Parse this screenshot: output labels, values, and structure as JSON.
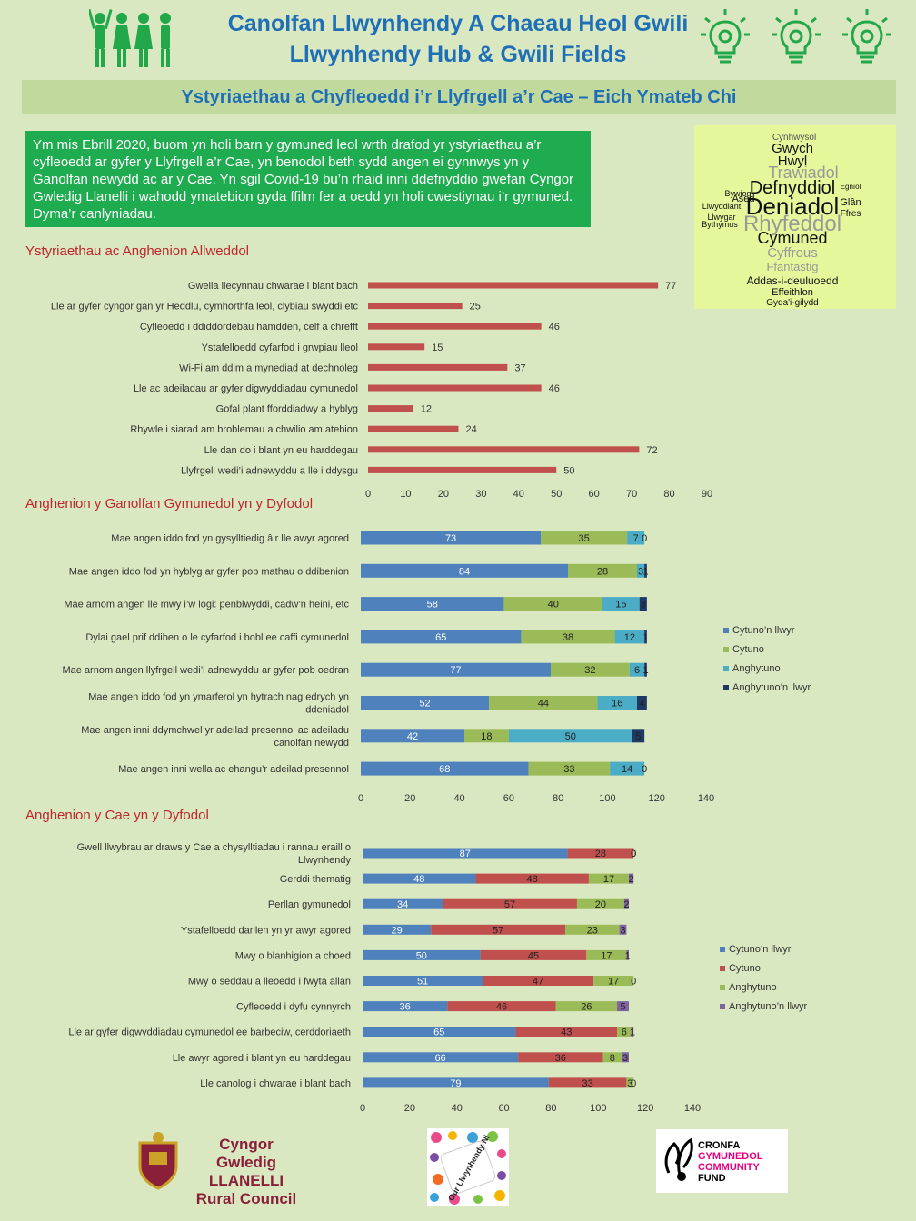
{
  "header": {
    "title_welsh": "Canolfan Llwynhendy A Chaeau Heol Gwili",
    "title_english": "Llwynhendy Hub & Gwili Fields",
    "banner": "Ystyriaethau a Chyfleoedd i’r Llyfrgell a’r Cae – Eich Ymateb Chi",
    "icons": [
      "people-icon",
      "lightbulb-gear-icon",
      "lightbulb-gear-icon",
      "lightbulb-gear-icon"
    ],
    "colors": {
      "title": "#1f6fb7",
      "people": "#22a84a",
      "bulb": "#22a84a"
    }
  },
  "intro": "Ym mis Ebrill 2020, buom yn holi barn y gymuned leol wrth drafod yr ystyriaethau a’r cyfleoedd ar gyfer y Llyfrgell a’r Cae, yn benodol beth sydd angen ei gynnwys yn y Ganolfan newydd ac ar y Cae.  Yn sgil Covid-19 bu’n rhaid inni ddefnyddio gwefan Cyngor Gwledig Llanelli i wahodd ymatebion gyda ffilm fer a oedd yn holi cwestiynau i’r gymuned.  Dyma’r canlyniadau.",
  "word_cloud": [
    "Cynhwysol",
    "Gwych",
    "Hwyl",
    "Trawiadol",
    "Defnyddiol",
    "Deniadol",
    "Rhyfeddol",
    "Cymuned",
    "Cyffrous",
    "Ffantastig",
    "Addas-i-deuluoedd",
    "Effeithlon",
    "Gyda'i-gilydd",
    "Llwyddiant",
    "Llwygar",
    "Bywiog",
    "Ased",
    "Bythymus",
    "Glân",
    "Ffres",
    "Egnïol"
  ],
  "footer": {
    "council_line1": "Cyngor Gwledig",
    "council_line2": "LLANELLI",
    "council_line3": "Rural Council",
    "middle_logo": "Our Llwynhendy Ni",
    "fund_line1": "CRONFA",
    "fund_line2": "GYMUNEDOL",
    "fund_line3": "COMMUNITY",
    "fund_line4": "FUND"
  },
  "chart_data": [
    {
      "type": "bar",
      "title": "Ystyriaethau ac Anghenion Allweddol",
      "orientation": "horizontal",
      "categories": [
        "Gwella llecynnau chwarae i blant bach",
        "Lle ar gyfer cyngor gan yr Heddlu, cymhorthfa leol, clybiau swyddi etc",
        "Cyfleoedd i ddiddordebau hamdden, celf a chrefft",
        "Ystafelloedd cyfarfod i grwpiau lleol",
        "Wi-Fi am ddim a mynediad at dechnoleg",
        "Lle ac adeiladau ar gyfer digwyddiadau cymunedol",
        "Gofal plant fforddiadwy a hyblyg",
        "Rhywle i siarad am broblemau a chwilio am atebion",
        "Lle dan do i blant yn eu harddegau",
        "Llyfrgell wedi’i adnewyddu a lle i ddysgu"
      ],
      "values": [
        77,
        25,
        46,
        15,
        37,
        46,
        12,
        24,
        72,
        50
      ],
      "xlim": [
        0,
        90
      ],
      "ticks": [
        "0",
        "10",
        "20",
        "30",
        "40",
        "50",
        "60",
        "70",
        "80",
        "90"
      ],
      "color": "#c0504d"
    },
    {
      "type": "bar",
      "stacked": true,
      "orientation": "horizontal",
      "title": "Anghenion y Ganolfan Gymunedol yn y Dyfodol",
      "categories": [
        [
          "Mae angen iddo fod yn gysylltiedig â’r lle awyr agored"
        ],
        [
          "Mae angen iddo fod yn hyblyg ar gyfer pob mathau o ddibenion"
        ],
        [
          "Mae arnom angen lle mwy i’w logi: penblwyddi, cadw’n heini, etc"
        ],
        [
          "Dylai gael prif ddiben o le cyfarfod i bobl ee caffi cymunedol"
        ],
        [
          "Mae arnom angen llyfrgell wedi’i adnewyddu ar gyfer pob oedran"
        ],
        [
          "Mae angen iddo fod yn ymarferol yn hytrach nag edrych yn",
          "ddeniadol"
        ],
        [
          "Mae angen inni ddymchwel yr adeilad presennol ac adeiladu",
          "canolfan newydd"
        ],
        [
          "Mae angen inni wella ac ehangu’r adeilad presennol"
        ]
      ],
      "series": [
        {
          "name": "Cytuno’n llwyr",
          "color": "#4f81bd",
          "values": [
            73,
            84,
            58,
            65,
            77,
            52,
            42,
            68
          ],
          "labels": [
            "73",
            "84",
            "58",
            "65",
            "77",
            "52",
            "42",
            "68"
          ]
        },
        {
          "name": "Cytuno",
          "color": "#9bbb59",
          "values": [
            35,
            28,
            40,
            38,
            32,
            44,
            18,
            33
          ],
          "labels": [
            "35",
            "28",
            "40",
            "38",
            "32",
            "44",
            "18",
            "33"
          ]
        },
        {
          "name": "Anghytuno",
          "color": "#4bacc6",
          "values": [
            7,
            3,
            15,
            12,
            6,
            16,
            50,
            14
          ],
          "labels": [
            "7",
            "3",
            "15",
            "12",
            "6",
            "16",
            "50",
            "14"
          ]
        },
        {
          "name": "Anghytuno’n llwyr",
          "color": "#1f3864",
          "values": [
            0,
            1,
            3,
            1,
            1,
            4,
            5,
            0
          ],
          "labels": [
            "0",
            "1",
            "3",
            "1",
            "1",
            "4",
            "5",
            "0"
          ]
        }
      ],
      "xlim": [
        0,
        140
      ],
      "ticks": [
        "0",
        "20",
        "40",
        "60",
        "80",
        "100",
        "120",
        "140"
      ],
      "legend": "right"
    },
    {
      "type": "bar",
      "stacked": true,
      "orientation": "horizontal",
      "title": "Anghenion y Cae yn y Dyfodol",
      "categories": [
        [
          "Gwell llwybrau ar draws y Cae a chysylltiadau i rannau eraill o",
          "Llwynhendy"
        ],
        [
          "Gerddi thematig"
        ],
        [
          "Perllan gymunedol"
        ],
        [
          "Ystafelloedd darllen yn yr awyr agored"
        ],
        [
          "Mwy o blanhigion a choed"
        ],
        [
          "Mwy o seddau a lleoedd i fwyta allan"
        ],
        [
          "Cyfleoedd i dyfu cynnyrch"
        ],
        [
          "Lle ar gyfer digwyddiadau cymunedol ee barbeciw, cerddoriaeth"
        ],
        [
          "Lle awyr agored i blant yn eu harddegau"
        ],
        [
          "Lle canolog i chwarae i blant bach"
        ]
      ],
      "series": [
        {
          "name": "Cytuno’n llwyr",
          "color": "#4f81bd",
          "values": [
            87,
            48,
            34,
            29,
            50,
            51,
            36,
            65,
            66,
            79
          ],
          "labels": [
            "87",
            "48",
            "34",
            "29",
            "50",
            "51",
            "36",
            "65",
            "66",
            "79"
          ]
        },
        {
          "name": "Cytuno",
          "color": "#c0504d",
          "values": [
            28,
            48,
            57,
            57,
            45,
            47,
            46,
            43,
            36,
            33
          ],
          "labels": [
            "28",
            "48",
            "57",
            "57",
            "45",
            "47",
            "46",
            "43",
            "36",
            "33"
          ]
        },
        {
          "name": "Anghytuno",
          "color": "#9bbb59",
          "values": [
            0,
            17,
            20,
            23,
            17,
            17,
            26,
            6,
            8,
            3
          ],
          "labels": [
            "0",
            "17",
            "20",
            "23",
            "17",
            "17",
            "26",
            "6",
            "8",
            "3"
          ]
        },
        {
          "name": "Anghytuno’n llwyr",
          "color": "#8064a2",
          "values": [
            0,
            2,
            2,
            3,
            1,
            0,
            5,
            1,
            3,
            0
          ],
          "labels": [
            "0",
            "2",
            "2",
            "3",
            "1",
            "0",
            "5",
            "1",
            "3",
            "0"
          ]
        }
      ],
      "xlim": [
        0,
        140
      ],
      "ticks": [
        "0",
        "20",
        "40",
        "60",
        "80",
        "100",
        "120",
        "140"
      ],
      "legend": "right"
    }
  ]
}
